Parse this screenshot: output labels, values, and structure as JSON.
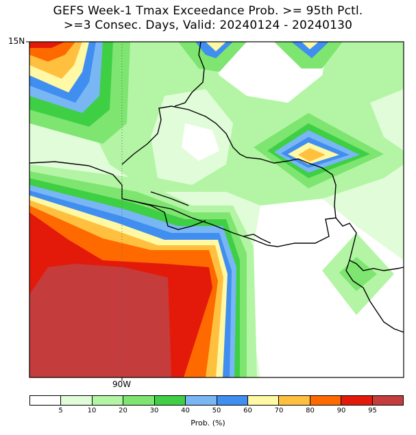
{
  "title": {
    "line1": "GEFS Week-1 Tmax Exceedance Prob. >= 95th Pctl.",
    "line2": ">=3 Consec. Days, Valid: 20240124 - 20240130"
  },
  "axes": {
    "lat_label": "15N",
    "lon_label": "90W"
  },
  "legend": {
    "unit_label": "Prob. (%)",
    "colors": [
      "#ffffff",
      "#e1fcd9",
      "#b3f5a4",
      "#7de570",
      "#3fcf45",
      "#79b6f4",
      "#3f8ef0",
      "#fff8a4",
      "#ffc040",
      "#ff6a00",
      "#e31a0a",
      "#c43c3c"
    ],
    "ticks": [
      "5",
      "10",
      "20",
      "30",
      "40",
      "50",
      "60",
      "70",
      "80",
      "90",
      "95"
    ]
  }
}
